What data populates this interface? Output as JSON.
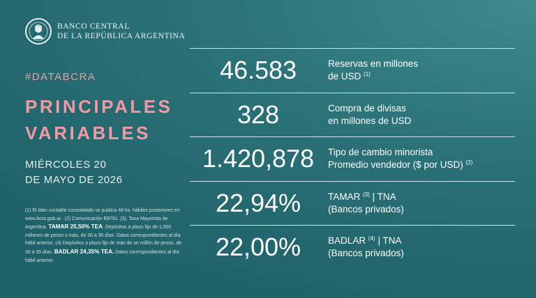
{
  "brand": {
    "line1": "BANCO CENTRAL",
    "line2": "DE LA REPÚBLICA ARGENTINA",
    "logo_icon": "bcra-seal-icon"
  },
  "hashtag": "#DATABCRA",
  "title": {
    "line1": "PRINCIPALES",
    "line2": "VARIABLES"
  },
  "date": {
    "line1": "MIÉRCOLES 20",
    "line2": "DE MAYO DE 2026"
  },
  "notes": {
    "part1": "(1) El dato contable consolidado se publica 48 hs. hábiles posteriores en www.bcra.gob.ar.. (2) Comunicación B9791. (3). Tasa Mayorista de Argentina.",
    "tamar_rate": "TAMAR 25,50% TEA",
    "part2": ". Depósitos a plazo fijo de 1.000 millones de pesos o más, de 30 a 35 días. Datos correspondientes al día hábil anterior. (4) Depósitos a plazo fijo de más de un millón de pesos, de 30 a 35 días.",
    "badlar_rate": "BADLAR 24,35% TEA.",
    "part3": " Datos correspondientes al día hábil anterior."
  },
  "metrics": [
    {
      "value": "46.583",
      "line1": "Reservas en millones",
      "line2": "de USD",
      "sup2": "(1)"
    },
    {
      "value": "328",
      "line1": "Compra de divisas",
      "line2": "en millones de USD",
      "sup2": ""
    },
    {
      "value": "1.420,878",
      "line1": "Tipo de cambio minorista",
      "line2": "Promedio vendedor ($ por USD)",
      "sup2": "(2)"
    },
    {
      "value": "22,94%",
      "line1": "TAMAR",
      "sup1": "(3)",
      "line1b": " | TNA",
      "line2": "(Bancos privados)"
    },
    {
      "value": "22,00%",
      "line1": "BADLAR",
      "sup1": "(4)",
      "line1b": " | TNA",
      "line2": "(Bancos privados)"
    }
  ],
  "colors": {
    "background": "#2b7379",
    "accent_pink": "#f19aa3",
    "rule": "#d3e2e3"
  }
}
